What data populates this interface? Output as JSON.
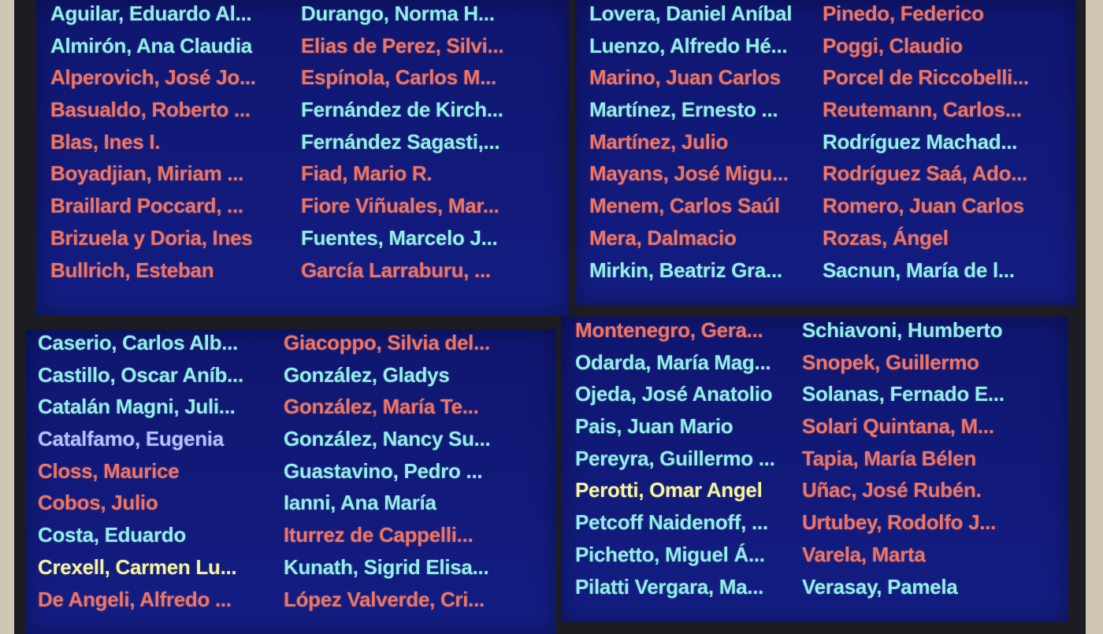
{
  "colors": {
    "cyan": "#8ff0e6",
    "red": "#f5725c",
    "blue": "#b4c0ff",
    "yellow": "#f6f59a"
  },
  "panels": [
    {
      "columns": [
        [
          [
            "Aguilar, Eduardo Al...",
            "cyan"
          ],
          [
            "Almirón, Ana Claudia",
            "cyan"
          ],
          [
            "Alperovich, José Jo...",
            "red"
          ],
          [
            "Basualdo, Roberto ...",
            "red"
          ],
          [
            "Blas, Ines I.",
            "red"
          ],
          [
            "Boyadjian, Miriam ...",
            "red"
          ],
          [
            "Braillard Poccard, ...",
            "red"
          ],
          [
            "Brizuela y Doria, Ines",
            "red"
          ],
          [
            "Bullrich, Esteban",
            "red"
          ]
        ],
        [
          [
            "Durango, Norma H...",
            "cyan"
          ],
          [
            "Elias de Perez, Silvi...",
            "red"
          ],
          [
            "Espínola, Carlos M...",
            "red"
          ],
          [
            "Fernández de Kirch...",
            "cyan"
          ],
          [
            "Fernández Sagasti,...",
            "cyan"
          ],
          [
            "Fiad, Mario R.",
            "red"
          ],
          [
            "Fiore Viñuales, Mar...",
            "red"
          ],
          [
            "Fuentes, Marcelo J...",
            "cyan"
          ],
          [
            "García Larraburu, ...",
            "red"
          ]
        ]
      ]
    },
    {
      "columns": [
        [
          [
            "Lovera, Daniel Aníbal",
            "cyan"
          ],
          [
            "Luenzo, Alfredo Hé...",
            "cyan"
          ],
          [
            "Marino, Juan Carlos",
            "red"
          ],
          [
            "Martínez, Ernesto ...",
            "cyan"
          ],
          [
            "Martínez, Julio",
            "red"
          ],
          [
            "Mayans, José Migu...",
            "red"
          ],
          [
            "Menem, Carlos Saúl",
            "red"
          ],
          [
            "Mera, Dalmacio",
            "red"
          ],
          [
            "Mirkin, Beatriz Gra...",
            "cyan"
          ]
        ],
        [
          [
            "Pinedo, Federico",
            "red"
          ],
          [
            "Poggi, Claudio",
            "red"
          ],
          [
            "Porcel de Riccobelli...",
            "red"
          ],
          [
            "Reutemann, Carlos...",
            "red"
          ],
          [
            "Rodríguez Machad...",
            "cyan"
          ],
          [
            "Rodríguez Saá, Ado...",
            "red"
          ],
          [
            "Romero, Juan Carlos",
            "red"
          ],
          [
            "Rozas, Ángel",
            "red"
          ],
          [
            "Sacnun, María de l...",
            "cyan"
          ]
        ]
      ]
    },
    {
      "columns": [
        [
          [
            "Caserio, Carlos Alb...",
            "cyan"
          ],
          [
            "Castillo, Oscar Aníb...",
            "cyan"
          ],
          [
            "Catalán Magni, Juli...",
            "cyan"
          ],
          [
            "Catalfamo, Eugenia",
            "blue"
          ],
          [
            "Closs, Maurice",
            "red"
          ],
          [
            "Cobos, Julio",
            "red"
          ],
          [
            "Costa, Eduardo",
            "cyan"
          ],
          [
            "Crexell, Carmen Lu...",
            "yellow"
          ],
          [
            "De Angeli, Alfredo ...",
            "red"
          ]
        ],
        [
          [
            "Giacoppo, Silvia del...",
            "red"
          ],
          [
            "González, Gladys",
            "cyan"
          ],
          [
            "González, María Te...",
            "red"
          ],
          [
            "González, Nancy Su...",
            "cyan"
          ],
          [
            "Guastavino, Pedro ...",
            "cyan"
          ],
          [
            "Ianni, Ana María",
            "cyan"
          ],
          [
            "Iturrez de Cappelli...",
            "red"
          ],
          [
            "Kunath, Sigrid Elisa...",
            "cyan"
          ],
          [
            "López Valverde, Cri...",
            "red"
          ]
        ]
      ]
    },
    {
      "columns": [
        [
          [
            "Montenegro, Gera...",
            "red"
          ],
          [
            "Odarda, María Mag...",
            "cyan"
          ],
          [
            "Ojeda, José Anatolio",
            "cyan"
          ],
          [
            "Pais, Juan Mario",
            "cyan"
          ],
          [
            "Pereyra, Guillermo ...",
            "cyan"
          ],
          [
            "Perotti, Omar Angel",
            "yellow"
          ],
          [
            "Petcoff Naidenoff, ...",
            "cyan"
          ],
          [
            "Pichetto, Miguel Á...",
            "cyan"
          ],
          [
            "Pilatti Vergara, Ma...",
            "cyan"
          ]
        ],
        [
          [
            "Schiavoni, Humberto",
            "cyan"
          ],
          [
            "Snopek, Guillermo",
            "red"
          ],
          [
            "Solanas, Fernado E...",
            "cyan"
          ],
          [
            "Solari Quintana, M...",
            "red"
          ],
          [
            "Tapia, María Bélen",
            "red"
          ],
          [
            "Uñac, José Rubén.",
            "red"
          ],
          [
            "Urtubey, Rodolfo J...",
            "red"
          ],
          [
            "Varela, Marta",
            "red"
          ],
          [
            "Verasay, Pamela",
            "cyan"
          ]
        ]
      ]
    }
  ]
}
